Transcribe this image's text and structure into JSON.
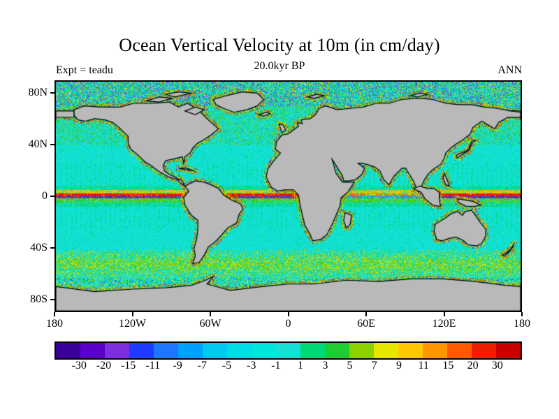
{
  "chart_data": {
    "type": "heatmap",
    "title": "Ocean Vertical Velocity at 10m (in cm/day)",
    "annotations": {
      "left": "Expt = teadu",
      "center": "20.0kyr BP",
      "right": "ANN"
    },
    "x_axis": {
      "tick_labels": [
        "180",
        "120W",
        "60W",
        "0",
        "60E",
        "120E",
        "180"
      ],
      "lon_values": [
        -180,
        -120,
        -60,
        0,
        60,
        120,
        180
      ]
    },
    "y_axis": {
      "tick_labels": [
        "80N",
        "40N",
        "0",
        "40S",
        "80S"
      ],
      "lat_values": [
        80,
        40,
        0,
        -40,
        -80
      ]
    },
    "colorbar": {
      "units": "cm/day",
      "boundary_labels": [
        "-30",
        "-20",
        "-15",
        "-11",
        "-9",
        "-7",
        "-5",
        "-3",
        "-1",
        "1",
        "3",
        "5",
        "7",
        "9",
        "11",
        "15",
        "20",
        "30"
      ],
      "segment_colors": [
        "#3a0099",
        "#5a00c8",
        "#7d2fe0",
        "#1e3cff",
        "#1e78ff",
        "#00a0ff",
        "#00c8f0",
        "#00dce6",
        "#00e6dc",
        "#17dfd3",
        "#00d878",
        "#1ecd32",
        "#8cd200",
        "#e6e600",
        "#ffc800",
        "#ff9600",
        "#ff5a00",
        "#f01e00",
        "#c80000"
      ],
      "value_range_shown": [
        -30,
        30
      ]
    },
    "map": {
      "projection": "equirectangular",
      "lon_range": [
        -180,
        180
      ],
      "lat_range": [
        -90,
        90
      ],
      "land_color": "#b9b9b9",
      "coastline_color": "#000000",
      "ocean_base_color": "#17dfd3"
    },
    "depicted_features": [
      "strong positive (red/orange, >20 cm/day) vertical-velocity band just north of the equator in the Pacific and Atlantic",
      "dark blue/purple negative band immediately at and south of the equator",
      "green and yellow upwelling speckle along continental coastlines",
      "green/yellow band across the Southern Ocean near 45S-60S and along the Antarctic coast",
      "weak background values (cyan, about -1 to 1 cm/day) over most of the open ocean",
      "gray land mask with 20 kyr BP (glacial) coastlines, Sunda shelf and Bering land bridge exposed"
    ]
  }
}
